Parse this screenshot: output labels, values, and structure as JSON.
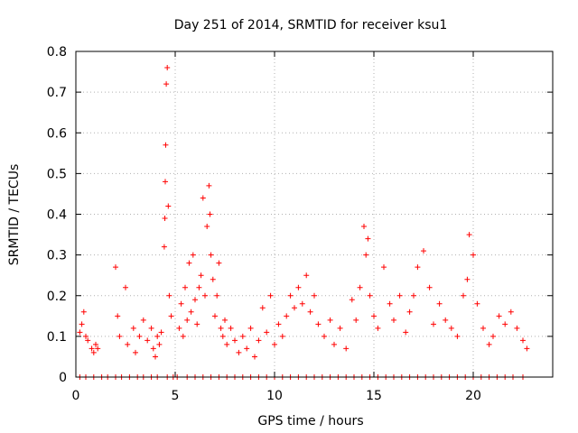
{
  "chart_data": {
    "type": "scatter",
    "title": "Day 251 of 2014, SRMTID for receiver ksu1",
    "xlabel": "GPS time / hours",
    "ylabel": "SRMTID / TECUs",
    "xlim": [
      0,
      24
    ],
    "ylim": [
      0,
      0.8
    ],
    "xticks": [
      0,
      5,
      10,
      15,
      20
    ],
    "yticks": [
      0,
      0.1,
      0.2,
      0.3,
      0.4,
      0.5,
      0.6,
      0.7,
      0.8
    ],
    "xtick_labels": [
      "0",
      "5",
      "10",
      "15",
      "20"
    ],
    "ytick_labels": [
      "0",
      "0.1",
      "0.2",
      "0.3",
      "0.4",
      "0.5",
      "0.6",
      "0.7",
      "0.8"
    ],
    "grid": true,
    "marker": "+",
    "series_color": "#ff0000",
    "series": [
      {
        "name": "SRMTID",
        "x": [
          0.2,
          0.3,
          0.4,
          0.5,
          0.6,
          0.8,
          0.9,
          1.0,
          1.1,
          2.0,
          2.1,
          2.2,
          2.5,
          2.6,
          2.9,
          3.0,
          3.2,
          3.4,
          3.6,
          3.8,
          3.9,
          4.0,
          4.1,
          4.2,
          4.3,
          4.45,
          4.48,
          4.5,
          4.52,
          4.55,
          4.6,
          4.65,
          4.7,
          4.8,
          5.2,
          5.3,
          5.4,
          5.5,
          5.6,
          5.7,
          5.8,
          5.9,
          6.0,
          6.1,
          6.2,
          6.3,
          6.4,
          6.5,
          6.6,
          6.7,
          6.75,
          6.8,
          6.9,
          7.0,
          7.1,
          7.2,
          7.3,
          7.4,
          7.5,
          7.6,
          7.8,
          8.0,
          8.2,
          8.4,
          8.6,
          8.8,
          9.0,
          9.2,
          9.4,
          9.6,
          9.8,
          10.0,
          10.2,
          10.4,
          10.6,
          10.8,
          11.0,
          11.2,
          11.4,
          11.6,
          11.8,
          12.0,
          12.2,
          12.5,
          12.8,
          13.0,
          13.3,
          13.6,
          13.9,
          14.1,
          14.3,
          14.5,
          14.6,
          14.7,
          14.8,
          15.0,
          15.2,
          15.5,
          15.8,
          16.0,
          16.3,
          16.6,
          16.8,
          17.0,
          17.2,
          17.5,
          17.8,
          18.0,
          18.3,
          18.6,
          18.9,
          19.2,
          19.5,
          19.7,
          19.8,
          20.0,
          20.2,
          20.5,
          20.8,
          21.0,
          21.3,
          21.6,
          21.9,
          22.2,
          22.5,
          22.7
        ],
        "y": [
          0.11,
          0.13,
          0.16,
          0.1,
          0.09,
          0.07,
          0.06,
          0.08,
          0.07,
          0.27,
          0.15,
          0.1,
          0.22,
          0.08,
          0.12,
          0.06,
          0.1,
          0.14,
          0.09,
          0.12,
          0.07,
          0.05,
          0.1,
          0.08,
          0.11,
          0.32,
          0.39,
          0.48,
          0.57,
          0.72,
          0.76,
          0.42,
          0.2,
          0.15,
          0.12,
          0.18,
          0.1,
          0.22,
          0.14,
          0.28,
          0.16,
          0.3,
          0.19,
          0.13,
          0.22,
          0.25,
          0.44,
          0.2,
          0.37,
          0.47,
          0.4,
          0.3,
          0.24,
          0.15,
          0.2,
          0.28,
          0.12,
          0.1,
          0.14,
          0.08,
          0.12,
          0.09,
          0.06,
          0.1,
          0.07,
          0.12,
          0.05,
          0.09,
          0.17,
          0.11,
          0.2,
          0.08,
          0.13,
          0.1,
          0.15,
          0.2,
          0.17,
          0.22,
          0.18,
          0.25,
          0.16,
          0.2,
          0.13,
          0.1,
          0.14,
          0.08,
          0.12,
          0.07,
          0.19,
          0.14,
          0.22,
          0.37,
          0.3,
          0.34,
          0.2,
          0.15,
          0.12,
          0.27,
          0.18,
          0.14,
          0.2,
          0.11,
          0.16,
          0.2,
          0.27,
          0.31,
          0.22,
          0.13,
          0.18,
          0.14,
          0.12,
          0.1,
          0.2,
          0.24,
          0.35,
          0.3,
          0.18,
          0.12,
          0.08,
          0.1,
          0.15,
          0.13,
          0.16,
          0.12,
          0.09,
          0.07
        ],
        "zero_x": [
          0.2,
          0.5,
          0.9,
          1.3,
          1.6,
          2.0,
          2.3,
          2.7,
          3.1,
          3.4,
          3.8,
          4.1,
          4.6,
          4.9,
          5.1,
          5.6,
          6.0,
          6.4,
          6.8,
          7.2,
          7.6,
          8.0,
          8.4,
          8.8,
          9.2,
          9.6,
          10.0,
          10.4,
          10.8,
          11.2,
          11.6,
          12.0,
          12.4,
          12.8,
          13.2,
          13.6,
          14.0,
          14.4,
          14.8,
          15.2,
          15.6,
          16.0,
          16.4,
          16.8,
          17.2,
          17.6,
          18.0,
          18.4,
          18.8,
          19.2,
          19.6,
          20.0,
          20.4,
          20.8,
          21.2,
          21.6,
          22.0,
          22.5
        ]
      }
    ]
  }
}
